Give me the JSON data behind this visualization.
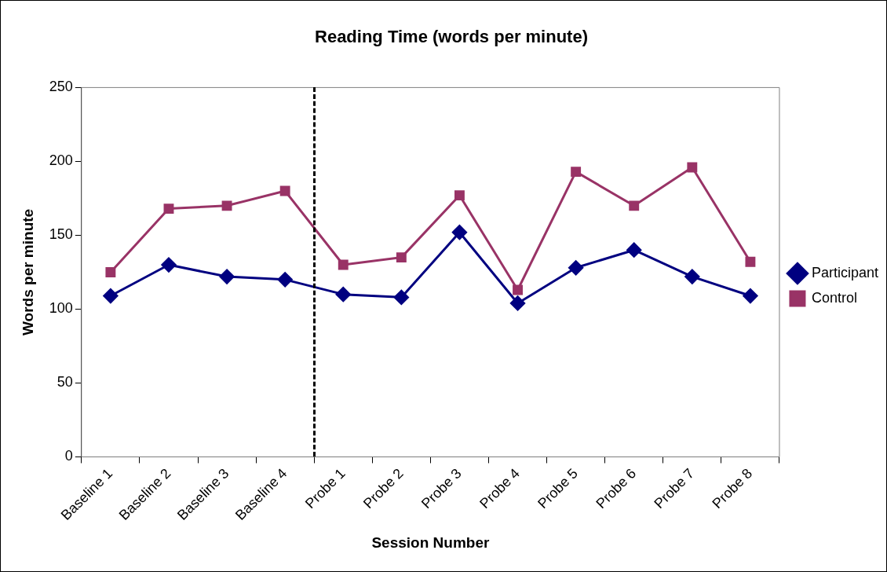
{
  "chart_data": {
    "type": "line",
    "title": "Reading Time (words per minute)",
    "xlabel": "Session Number",
    "ylabel": "Words per minute",
    "categories": [
      "Baseline 1",
      "Baseline 2",
      "Baseline 3",
      "Baseline 4",
      "Probe 1",
      "Probe 2",
      "Probe 3",
      "Probe 4",
      "Probe 5",
      "Probe 6",
      "Probe 7",
      "Probe 8"
    ],
    "series": [
      {
        "name": "Participant",
        "color": "#000080",
        "marker": "diamond",
        "values": [
          109,
          130,
          122,
          120,
          110,
          108,
          152,
          104,
          128,
          140,
          122,
          109
        ]
      },
      {
        "name": "Control",
        "color": "#993366",
        "marker": "square",
        "values": [
          125,
          168,
          170,
          180,
          130,
          135,
          177,
          113,
          193,
          170,
          196,
          132
        ]
      }
    ],
    "ylim": [
      0,
      250
    ],
    "yticks": [
      0,
      50,
      100,
      150,
      200,
      250
    ],
    "grid": false,
    "legend": "right",
    "line_style": "solid"
  }
}
